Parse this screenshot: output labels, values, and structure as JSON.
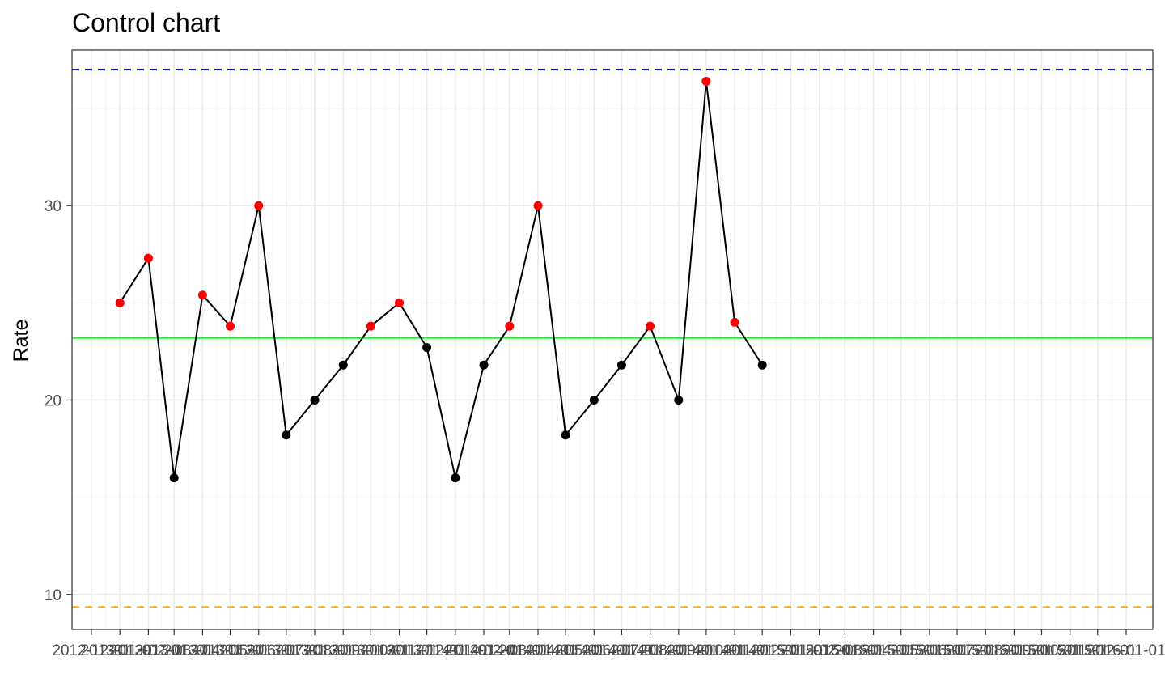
{
  "chart_data": {
    "type": "line",
    "title": "Control chart",
    "xlabel": "",
    "ylabel": "Rate",
    "ylim": [
      8.2,
      38.0
    ],
    "y_ticks": [
      10,
      20,
      30
    ],
    "grid": true,
    "legend": "none",
    "x_ticks": [
      "2012-12-01",
      "2013-01-01",
      "2013-02-01",
      "2013-03-01",
      "2013-04-01",
      "2013-05-01",
      "2013-06-01",
      "2013-07-01",
      "2013-08-01",
      "2013-09-01",
      "2013-10-01",
      "2013-11-01",
      "2013-12-01",
      "2014-01-01",
      "2014-02-01",
      "2014-03-01",
      "2014-04-01",
      "2014-05-01",
      "2014-06-01",
      "2014-07-01",
      "2014-08-01",
      "2014-09-01",
      "2014-10-01",
      "2014-11-01",
      "2014-12-01",
      "2015-01-01",
      "2015-02-01",
      "2015-03-01",
      "2015-04-01",
      "2015-05-01",
      "2015-06-01",
      "2015-07-01",
      "2015-08-01",
      "2015-09-01",
      "2015-10-01",
      "2015-11-01",
      "2015-12-01",
      "2016-01-01"
    ],
    "x_tick_labels": [
      "2012-12-01",
      "2013-01-01",
      "2013-02-01",
      "2013-03-01",
      "2013-04-01",
      "2013-05-01",
      "2013-06-01",
      "2013-07-01",
      "2013-08-01",
      "2013-09-01",
      "2013-10-01",
      "2013-11-01",
      "2013-12-01",
      "2014-01-01",
      "2014-02-01",
      "2014-03-01",
      "2014-04-01",
      "2014-05-01",
      "2014-06-01",
      "2014-07-01",
      "2014-08-01",
      "2014-09-01",
      "2014-10-01",
      "2014-11-01",
      "2014-12-01",
      "2015-01-01",
      "2015-02-01",
      "2015-03-01",
      "2015-04-01",
      "2015-05-01",
      "2015-06-01",
      "2015-07-01",
      "2015-08-01",
      "2015-09-01",
      "2015-10-01",
      "2015-11-01",
      "2015-12-01",
      "2016-01-01"
    ],
    "series": [
      {
        "x": [
          "2013-01-01",
          "2013-02-01",
          "2013-03-01",
          "2013-04-01",
          "2013-05-01",
          "2013-06-01",
          "2013-07-01",
          "2013-08-01",
          "2013-09-01",
          "2013-10-01",
          "2013-11-01",
          "2013-12-01",
          "2014-01-01",
          "2014-02-01",
          "2014-03-01",
          "2014-04-01",
          "2014-05-01",
          "2014-06-01",
          "2014-07-01",
          "2014-08-01",
          "2014-09-01",
          "2014-10-01",
          "2014-11-01",
          "2014-12-01"
        ],
        "values": [
          25.0,
          27.3,
          16.0,
          25.4,
          23.8,
          30.0,
          18.2,
          20.0,
          21.8,
          23.8,
          25.0,
          22.7,
          16.0,
          21.8,
          23.8,
          30.0,
          18.2,
          20.0,
          21.8,
          23.8,
          20.0,
          36.4,
          24.0,
          21.8
        ],
        "point_flags": [
          "red",
          "red",
          "black",
          "red",
          "red",
          "red",
          "black",
          "black",
          "black",
          "red",
          "red",
          "black",
          "black",
          "black",
          "red",
          "red",
          "black",
          "black",
          "black",
          "red",
          "black",
          "red",
          "red",
          "black"
        ]
      }
    ],
    "reference_lines": [
      {
        "role": "upper control limit",
        "value": 37.0,
        "color": "#0000ff",
        "style": "dashed"
      },
      {
        "role": "center line",
        "value": 23.2,
        "color": "#00ff00",
        "style": "solid"
      },
      {
        "role": "lower control limit",
        "value": 9.35,
        "color": "#ffa500",
        "style": "dashed"
      }
    ],
    "colors": {
      "line": "#000000",
      "point_normal": "#000000",
      "point_flagged": "#ff0000",
      "grid_major": "#ebebeb",
      "grid_minor": "#f5f5f5",
      "panel_border": "#333333"
    }
  }
}
